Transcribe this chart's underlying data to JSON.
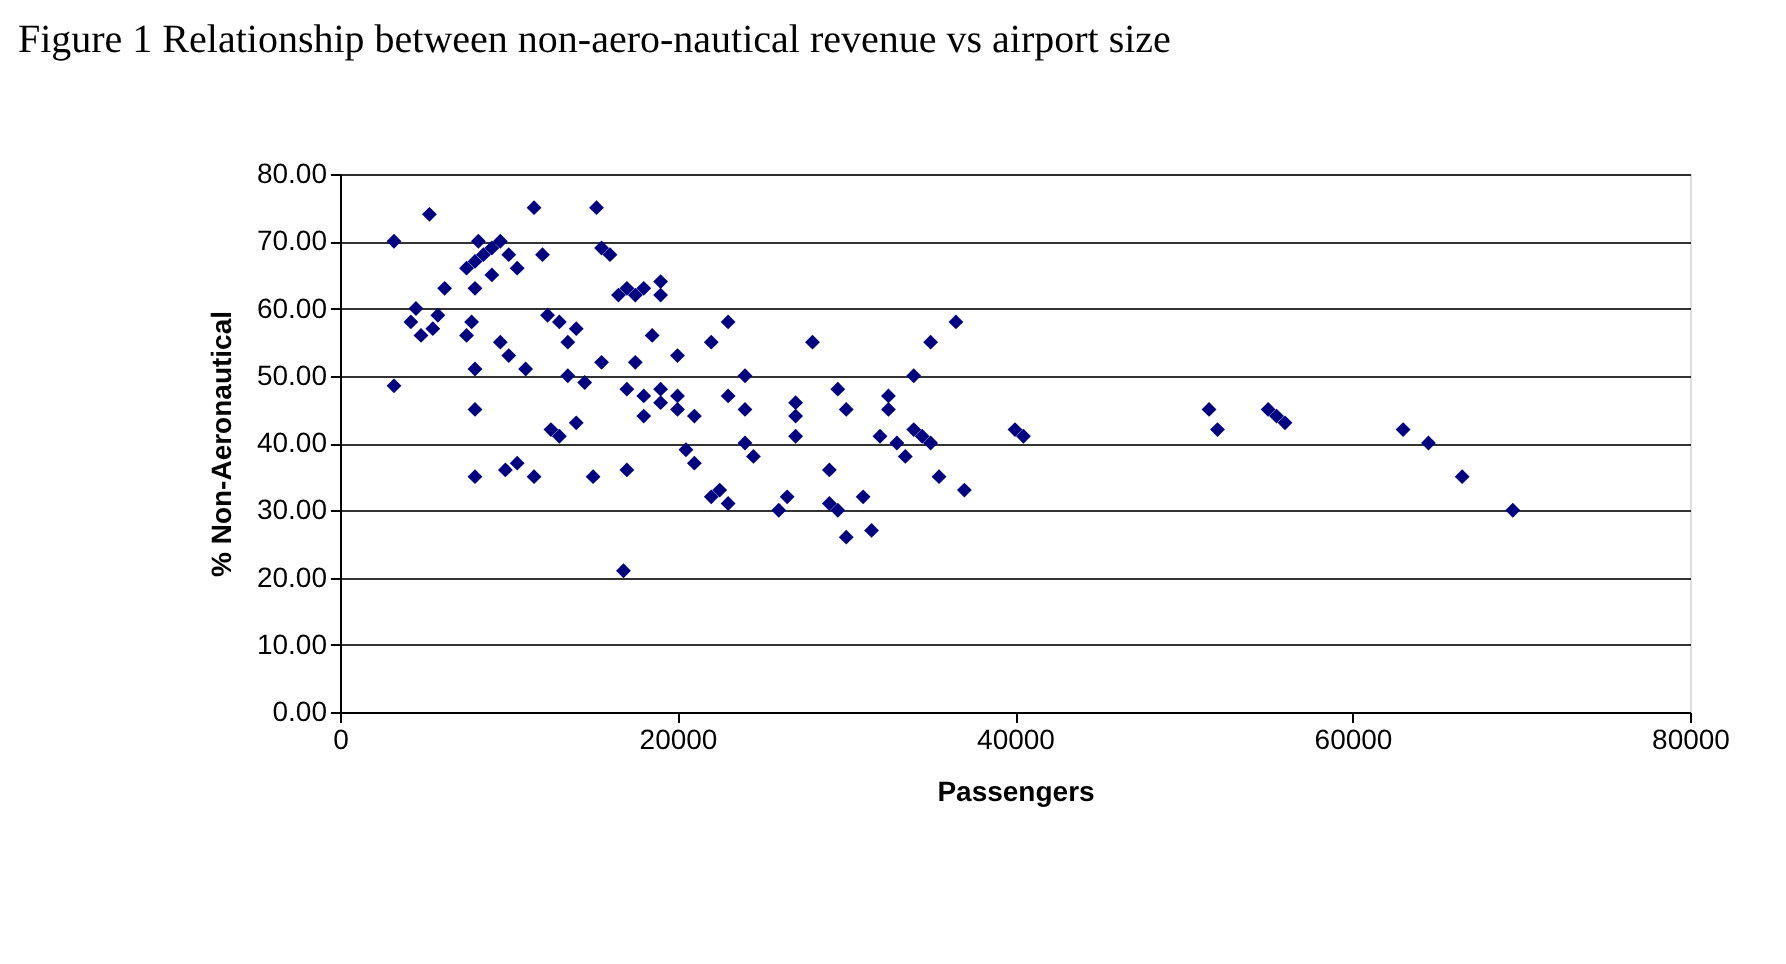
{
  "chart_data": {
    "type": "scatter",
    "title": "Figure 1 Relationship between non-aero-nautical revenue vs airport size",
    "xlabel": "Passengers",
    "ylabel": "% Non-Aeronautical",
    "x": [
      3200,
      3200,
      5300,
      4500,
      4200,
      4800,
      5500,
      5800,
      6200,
      7500,
      8000,
      8500,
      9000,
      9500,
      8200,
      10000,
      9000,
      10500,
      8000,
      7500,
      8000,
      8000,
      8000,
      7800,
      9500,
      10000,
      10500,
      9800,
      11000,
      11500,
      11500,
      12000,
      12300,
      12500,
      13000,
      13500,
      13000,
      14000,
      13500,
      14000,
      14500,
      15000,
      15500,
      15200,
      15500,
      16000,
      16500,
      17000,
      17500,
      18000,
      19000,
      19000,
      18500,
      17500,
      17000,
      18000,
      19000,
      20000,
      20000,
      21000,
      20000,
      17000,
      16800,
      18000,
      19000,
      20500,
      21000,
      22000,
      22500,
      23000,
      23000,
      22000,
      23000,
      24000,
      24000,
      24500,
      24000,
      26000,
      26500,
      27000,
      27000,
      27000,
      28000,
      29000,
      29000,
      29500,
      30000,
      29500,
      30000,
      31000,
      31500,
      32000,
      32500,
      32500,
      33000,
      33500,
      34000,
      34000,
      34500,
      35000,
      35000,
      35500,
      36500,
      37000,
      40000,
      40500,
      51500,
      52000,
      55000,
      55500,
      56000,
      63000,
      64500,
      66500,
      69500
    ],
    "series": [
      {
        "color": "#000080",
        "values": [
          70,
          48.5,
          74,
          60,
          58,
          56,
          57,
          59,
          63,
          66,
          67,
          68,
          69,
          70,
          70,
          68,
          65,
          66,
          63,
          56,
          51,
          45,
          35,
          58,
          55,
          53,
          37,
          36,
          51,
          35,
          75,
          68,
          59,
          42,
          41,
          55,
          58,
          57,
          50,
          43,
          49,
          35,
          52,
          75,
          69,
          68,
          62,
          63,
          62,
          63,
          64,
          62,
          56,
          52,
          48,
          47,
          46,
          47,
          45,
          44,
          53,
          36,
          21,
          44,
          48,
          39,
          37,
          32,
          33,
          31,
          58,
          55,
          47,
          50,
          45,
          38,
          40,
          30,
          32,
          46,
          44,
          41,
          55,
          36,
          31,
          48,
          45,
          30,
          26,
          32,
          27,
          41,
          45,
          47,
          40,
          38,
          42,
          50,
          41,
          40,
          55,
          35,
          58,
          33,
          42,
          41,
          45,
          42,
          45,
          44,
          43,
          42,
          40,
          35,
          30
        ]
      }
    ],
    "xlim": [
      0,
      80000
    ],
    "xticks": [
      0,
      20000,
      40000,
      60000,
      80000
    ],
    "ylim": [
      0,
      80
    ],
    "yticks": [
      {
        "value": 0,
        "label": "0.00"
      },
      {
        "value": 10,
        "label": "10.00"
      },
      {
        "value": 20,
        "label": "20.00"
      },
      {
        "value": 30,
        "label": "30.00"
      },
      {
        "value": 40,
        "label": "40.00"
      },
      {
        "value": 50,
        "label": "50.00"
      },
      {
        "value": 60,
        "label": "60.00"
      },
      {
        "value": 70,
        "label": "70.00"
      },
      {
        "value": 80,
        "label": "80.00"
      }
    ],
    "grid": "y",
    "marker": "diamond"
  }
}
